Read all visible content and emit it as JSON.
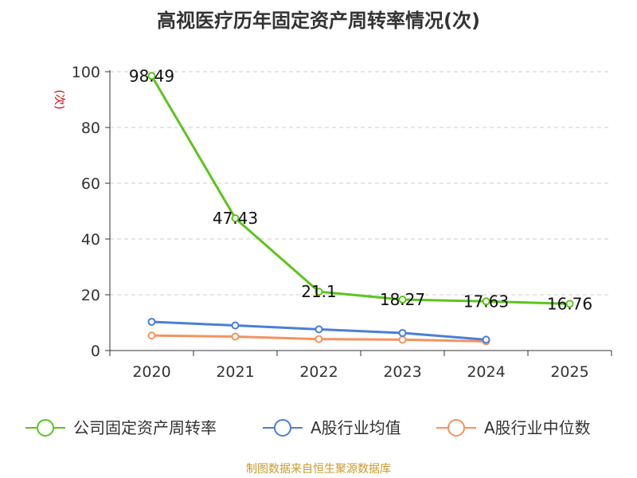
{
  "title": "高视医疗历年固定资产周转率情况(次)",
  "source": "制图数据来自恒生聚源数据库",
  "chart_data": {
    "type": "line",
    "x": [
      "2020",
      "2021",
      "2022",
      "2023",
      "2024",
      "2025"
    ],
    "ylabel": "(次)",
    "ylim": [
      0,
      100
    ],
    "yticks": [
      0,
      20,
      40,
      60,
      80,
      100
    ],
    "grid": true,
    "legend_position": "bottom",
    "series": [
      {
        "name": "公司固定资产周转率",
        "color": "#5cc41e",
        "values": [
          98.49,
          47.43,
          21.1,
          18.27,
          17.63,
          16.76
        ],
        "labels": [
          "98.49",
          "47.43",
          "21.1",
          "18.27",
          "17.63",
          "16.76"
        ]
      },
      {
        "name": "A股行业均值",
        "color": "#4a7fd6",
        "values": [
          10.3,
          9.0,
          7.6,
          6.3,
          3.9,
          null
        ]
      },
      {
        "name": "A股行业中位数",
        "color": "#f5925e",
        "values": [
          5.4,
          5.0,
          4.1,
          3.9,
          3.3,
          null
        ]
      }
    ]
  }
}
